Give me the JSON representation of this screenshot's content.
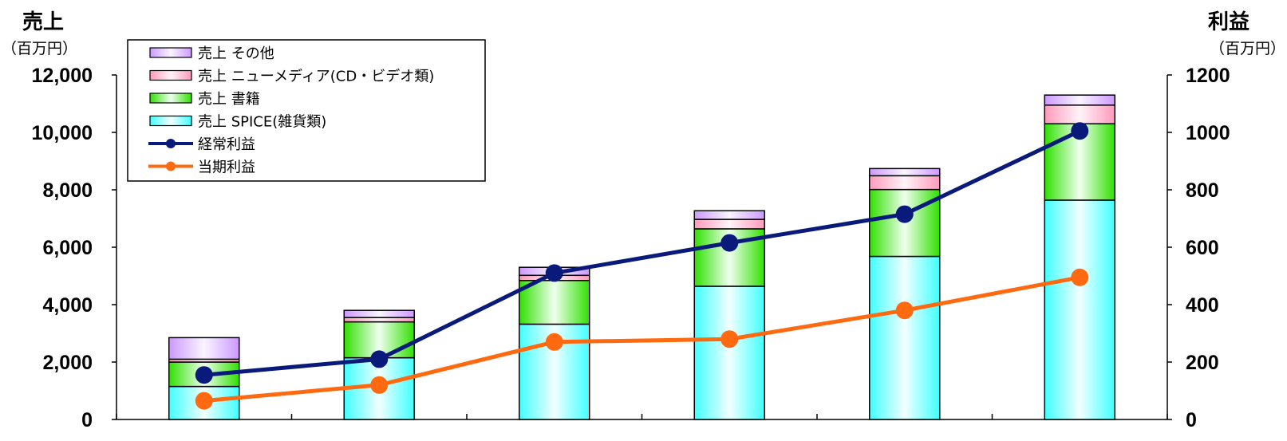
{
  "chart_data": {
    "type": "bar",
    "title": "",
    "ylabel": "売上",
    "ylabel_unit": "（百万円）",
    "y2label": "利益",
    "y2label_unit": "（百万円）",
    "ylim": [
      0,
      12000
    ],
    "y2lim": [
      0,
      1200
    ],
    "yticks": [
      "0",
      "2,000",
      "4,000",
      "6,000",
      "8,000",
      "10,000",
      "12,000"
    ],
    "y2ticks": [
      "0",
      "200",
      "400",
      "600",
      "800",
      "1000",
      "1200"
    ],
    "grid": false,
    "legend_position": "top-left",
    "categories": [
      "",
      "",
      "",
      "",
      "",
      ""
    ],
    "bar_series": [
      {
        "name": "売上 SPICE(雑貨類)",
        "values": [
          1150,
          2150,
          3320,
          4640,
          5680,
          7640
        ],
        "color": "#40ffff"
      },
      {
        "name": "売上 書籍",
        "values": [
          850,
          1250,
          1520,
          2000,
          2330,
          2660
        ],
        "color": "#30e000"
      },
      {
        "name": "売上 ニューメディア(CD・ビデオ類)",
        "values": [
          100,
          150,
          180,
          330,
          480,
          650
        ],
        "color": "#ff99bb"
      },
      {
        "name": "売上 その他",
        "values": [
          750,
          250,
          280,
          300,
          250,
          350
        ],
        "color": "#cc99ff"
      }
    ],
    "line_series": [
      {
        "name": "経常利益",
        "axis": "right",
        "values": [
          155,
          210,
          510,
          615,
          715,
          1005
        ],
        "color": "#0a1a7a"
      },
      {
        "name": "当期利益",
        "axis": "right",
        "values": [
          65,
          120,
          270,
          280,
          380,
          495
        ],
        "color": "#ff6a10"
      }
    ],
    "legend_order": [
      3,
      2,
      1,
      0,
      "line0",
      "line1"
    ]
  }
}
